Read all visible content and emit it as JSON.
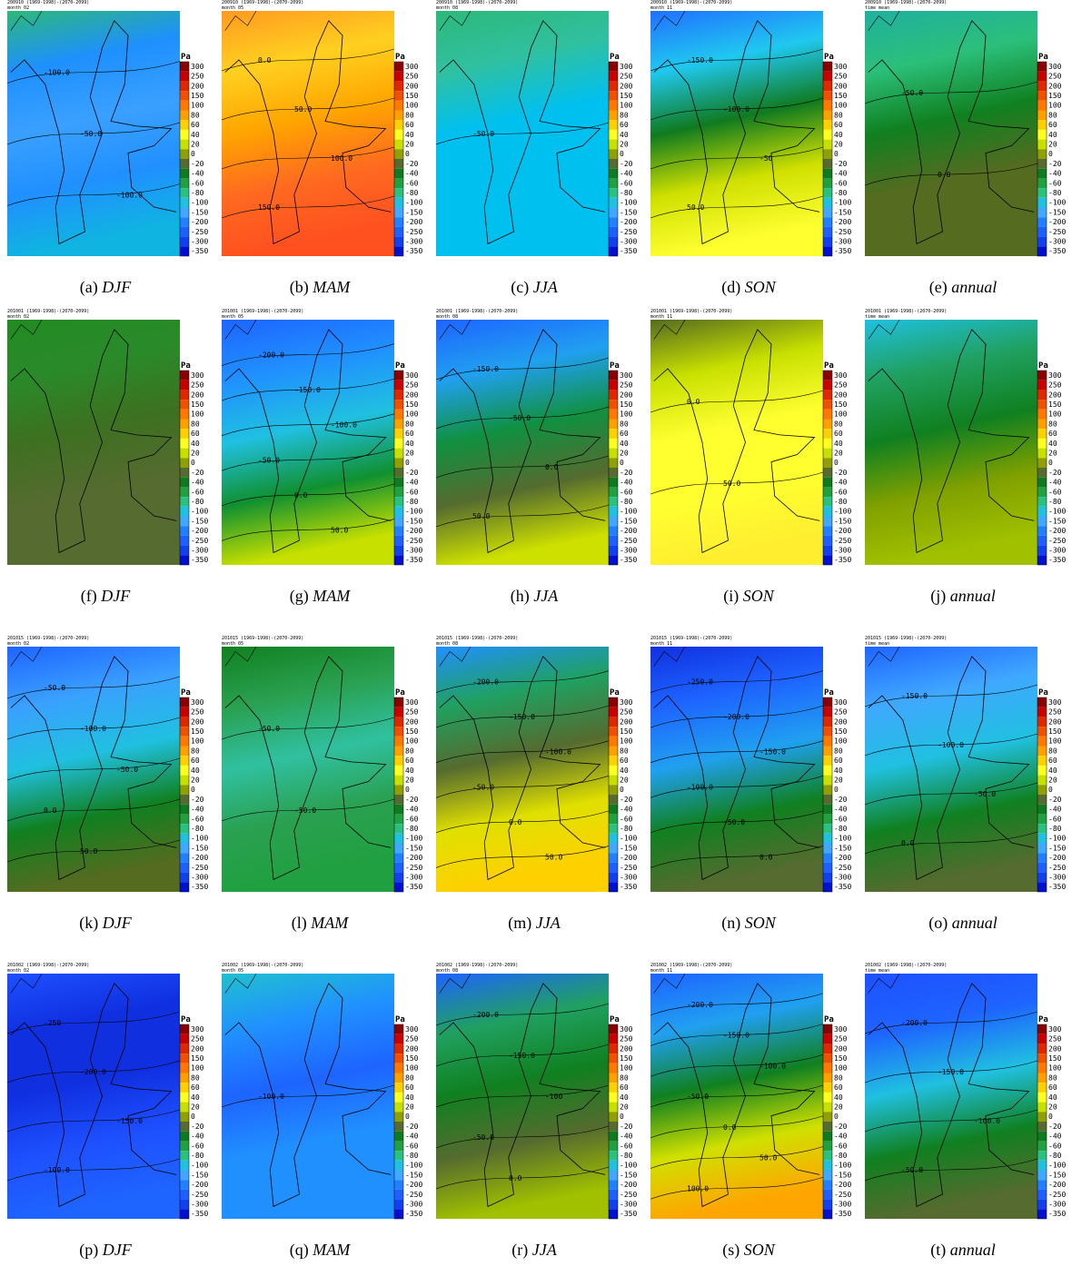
{
  "colorbar": {
    "unit": "Pa",
    "labels": [
      "300",
      "250",
      "200",
      "150",
      "100",
      "80",
      "60",
      "40",
      "20",
      "0",
      "-20",
      "-40",
      "-60",
      "-80",
      "-100",
      "-150",
      "-200",
      "-250",
      "-300",
      "-350"
    ]
  },
  "panels": [
    {
      "header": "200910 (1969-1998)-(2070-2099)",
      "subheader": "month 02",
      "letter": "(a)",
      "season": "DJF",
      "contours": [
        "-100.0",
        "-50.0",
        "-100.0"
      ]
    },
    {
      "header": "200910 (1969-1998)-(2070-2099)",
      "subheader": "month 05",
      "letter": "(b)",
      "season": "MAM",
      "contours": [
        "0.0",
        "50.0",
        "100.0",
        "150.0"
      ]
    },
    {
      "header": "200910 (1969-1998)-(2070-2099)",
      "subheader": "month 08",
      "letter": "(c)",
      "season": "JJA",
      "contours": [
        "-50.0"
      ]
    },
    {
      "header": "200910 (1969-1998)-(2070-2099)",
      "subheader": "month 11",
      "letter": "(d)",
      "season": "SON",
      "contours": [
        "-150.0",
        "-100.0",
        "-50",
        "50.0"
      ]
    },
    {
      "header": "200910 (1969-1998)-(2070-2099)",
      "subheader": "time mean",
      "letter": "(e)",
      "season": "annual",
      "contours": [
        "-50.0",
        "0.0"
      ]
    },
    {
      "header": "201001 (1969-1998)-(2070-2099)",
      "subheader": "month 02",
      "letter": "(f)",
      "season": "DJF",
      "contours": []
    },
    {
      "header": "201001 (1969-1998)-(2070-2099)",
      "subheader": "month 05",
      "letter": "(g)",
      "season": "MAM",
      "contours": [
        "-200.0",
        "-150.0",
        "-100.0",
        "-50.0",
        "0.0",
        "50.0"
      ]
    },
    {
      "header": "201001 (1969-1998)-(2070-2099)",
      "subheader": "month 08",
      "letter": "(h)",
      "season": "JJA",
      "contours": [
        "-150.0",
        "-50.0",
        "0.0",
        "50.0"
      ]
    },
    {
      "header": "201001 (1969-1998)-(2070-2099)",
      "subheader": "month 11",
      "letter": "(i)",
      "season": "SON",
      "contours": [
        "0.0",
        "50.0"
      ]
    },
    {
      "header": "201001 (1969-1998)-(2070-2099)",
      "subheader": "time mean",
      "letter": "(j)",
      "season": "annual",
      "contours": []
    },
    {
      "header": "201015 (1969-1998)-(2070-2099)",
      "subheader": "month 02",
      "letter": "(k)",
      "season": "DJF",
      "contours": [
        "-50.0",
        "-100.0",
        "-50.0",
        "0.0",
        "50.0"
      ]
    },
    {
      "header": "201015 (1969-1998)-(2070-2099)",
      "subheader": "month 05",
      "letter": "(l)",
      "season": "MAM",
      "contours": [
        "-50.0",
        "-50.0"
      ]
    },
    {
      "header": "201015 (1969-1998)-(2070-2099)",
      "subheader": "month 08",
      "letter": "(m)",
      "season": "JJA",
      "contours": [
        "-200.0",
        "-150.0",
        "-100.0",
        "-50.0",
        "0.0",
        "50.0"
      ]
    },
    {
      "header": "201015 (1969-1998)-(2070-2099)",
      "subheader": "month 11",
      "letter": "(n)",
      "season": "SON",
      "contours": [
        "-250.0",
        "-200.0",
        "-150.0",
        "-100.0",
        "-50.0",
        "0.0"
      ]
    },
    {
      "header": "201015 (1969-1998)-(2070-2099)",
      "subheader": "time mean",
      "letter": "(o)",
      "season": "annual",
      "contours": [
        "-150.0",
        "-100.0",
        "-50.0",
        "0.0"
      ]
    },
    {
      "header": "201002 (1969-1998)-(2070-2099)",
      "subheader": "month 02",
      "letter": "(p)",
      "season": "DJF",
      "contours": [
        "-250",
        "-200.0",
        "-150.0",
        "-100.0"
      ]
    },
    {
      "header": "201002 (1969-1998)-(2070-2099)",
      "subheader": "month 05",
      "letter": "(q)",
      "season": "MAM",
      "contours": [
        "-100.0"
      ]
    },
    {
      "header": "201002 (1969-1998)-(2070-2099)",
      "subheader": "month 08",
      "letter": "(r)",
      "season": "JJA",
      "contours": [
        "-200.0",
        "-150.0",
        "-100",
        "-50.0",
        "0.0"
      ]
    },
    {
      "header": "201002 (1969-1998)-(2070-2099)",
      "subheader": "month 11",
      "letter": "(s)",
      "season": "SON",
      "contours": [
        "-200.0",
        "-150.0",
        "-100.0",
        "-50.0",
        "0.0",
        "50.0",
        "100.0"
      ]
    },
    {
      "header": "201002 (1969-1998)-(2070-2099)",
      "subheader": "time mean",
      "letter": "(t)",
      "season": "annual",
      "contours": [
        "-200.0",
        "-150.0",
        "-100.0",
        "-50.0"
      ]
    }
  ]
}
